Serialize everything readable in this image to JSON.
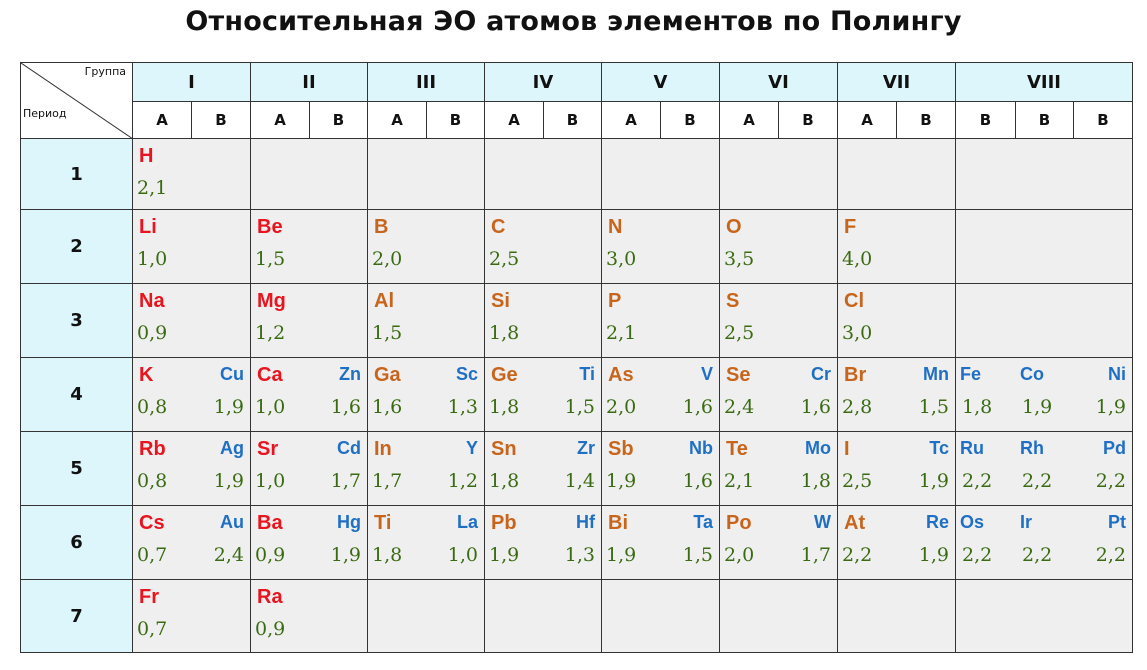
{
  "title": "Относительная ЭО атомов элементов по Полингу",
  "corner": {
    "group_label": "Группа",
    "period_label": "Период"
  },
  "groups": [
    "I",
    "II",
    "III",
    "IV",
    "V",
    "VI",
    "VII",
    "VIII"
  ],
  "subgroups": [
    "A",
    "B",
    "A",
    "B",
    "A",
    "B",
    "A",
    "B",
    "A",
    "B",
    "A",
    "B",
    "A",
    "B",
    "B",
    "B",
    "B"
  ],
  "periods": [
    "1",
    "2",
    "3",
    "4",
    "5",
    "6",
    "7"
  ],
  "colors": {
    "s_block": "#e8141e",
    "p_block": "#c8651c",
    "d_block": "#1f6fc4",
    "value": "#3a6b12",
    "header_bg": "#dcf6fb",
    "cell_bg": "#efefef"
  },
  "rows": [
    {
      "cells": [
        {
          "a": {
            "sym": "H",
            "en": "2,1",
            "c": "red"
          }
        },
        {},
        {},
        {},
        {},
        {},
        {},
        {}
      ]
    },
    {
      "cells": [
        {
          "a": {
            "sym": "Li",
            "en": "1,0",
            "c": "red"
          }
        },
        {
          "a": {
            "sym": "Be",
            "en": "1,5",
            "c": "red"
          }
        },
        {
          "a": {
            "sym": "B",
            "en": "2,0",
            "c": "orange"
          }
        },
        {
          "a": {
            "sym": "C",
            "en": "2,5",
            "c": "orange"
          }
        },
        {
          "a": {
            "sym": "N",
            "en": "3,0",
            "c": "orange"
          }
        },
        {
          "a": {
            "sym": "O",
            "en": "3,5",
            "c": "orange"
          }
        },
        {
          "a": {
            "sym": "F",
            "en": "4,0",
            "c": "orange"
          }
        },
        {}
      ]
    },
    {
      "cells": [
        {
          "a": {
            "sym": "Na",
            "en": "0,9",
            "c": "red"
          }
        },
        {
          "a": {
            "sym": "Mg",
            "en": "1,2",
            "c": "red"
          }
        },
        {
          "a": {
            "sym": "Al",
            "en": "1,5",
            "c": "orange"
          }
        },
        {
          "a": {
            "sym": "Si",
            "en": "1,8",
            "c": "orange"
          }
        },
        {
          "a": {
            "sym": "P",
            "en": "2,1",
            "c": "orange"
          }
        },
        {
          "a": {
            "sym": "S",
            "en": "2,5",
            "c": "orange"
          }
        },
        {
          "a": {
            "sym": "Cl",
            "en": "3,0",
            "c": "orange"
          }
        },
        {}
      ]
    },
    {
      "cells": [
        {
          "a": {
            "sym": "K",
            "en": "0,8",
            "c": "red"
          },
          "b": {
            "sym": "Cu",
            "en": "1,9"
          }
        },
        {
          "a": {
            "sym": "Ca",
            "en": "1,0",
            "c": "red"
          },
          "b": {
            "sym": "Zn",
            "en": "1,6"
          }
        },
        {
          "a": {
            "sym": "Ga",
            "en": "1,6",
            "c": "orange"
          },
          "b": {
            "sym": "Sc",
            "en": "1,3"
          }
        },
        {
          "a": {
            "sym": "Ge",
            "en": "1,8",
            "c": "orange"
          },
          "b": {
            "sym": "Ti",
            "en": "1,5"
          }
        },
        {
          "a": {
            "sym": "As",
            "en": "2,0",
            "c": "orange"
          },
          "b": {
            "sym": "V",
            "en": "1,6"
          }
        },
        {
          "a": {
            "sym": "Se",
            "en": "2,4",
            "c": "orange"
          },
          "b": {
            "sym": "Cr",
            "en": "1,6"
          }
        },
        {
          "a": {
            "sym": "Br",
            "en": "2,8",
            "c": "orange"
          },
          "b": {
            "sym": "Mn",
            "en": "1,5"
          }
        },
        {
          "viii": [
            {
              "sym": "Fe",
              "en": "1,8"
            },
            {
              "sym": "Co",
              "en": "1,9"
            },
            {
              "sym": "Ni",
              "en": "1,9"
            }
          ]
        }
      ]
    },
    {
      "cells": [
        {
          "a": {
            "sym": "Rb",
            "en": "0,8",
            "c": "red"
          },
          "b": {
            "sym": "Ag",
            "en": "1,9"
          }
        },
        {
          "a": {
            "sym": "Sr",
            "en": "1,0",
            "c": "red"
          },
          "b": {
            "sym": "Cd",
            "en": "1,7"
          }
        },
        {
          "a": {
            "sym": "In",
            "en": "1,7",
            "c": "orange"
          },
          "b": {
            "sym": "Y",
            "en": "1,2"
          }
        },
        {
          "a": {
            "sym": "Sn",
            "en": "1,8",
            "c": "orange"
          },
          "b": {
            "sym": "Zr",
            "en": "1,4"
          }
        },
        {
          "a": {
            "sym": "Sb",
            "en": "1,9",
            "c": "orange"
          },
          "b": {
            "sym": "Nb",
            "en": "1,6"
          }
        },
        {
          "a": {
            "sym": "Te",
            "en": "2,1",
            "c": "orange"
          },
          "b": {
            "sym": "Mo",
            "en": "1,8"
          }
        },
        {
          "a": {
            "sym": "I",
            "en": "2,5",
            "c": "orange"
          },
          "b": {
            "sym": "Tc",
            "en": "1,9"
          }
        },
        {
          "viii": [
            {
              "sym": "Ru",
              "en": "2,2"
            },
            {
              "sym": "Rh",
              "en": "2,2"
            },
            {
              "sym": "Pd",
              "en": "2,2"
            }
          ]
        }
      ]
    },
    {
      "cells": [
        {
          "a": {
            "sym": "Cs",
            "en": "0,7",
            "c": "red"
          },
          "b": {
            "sym": "Au",
            "en": "2,4"
          }
        },
        {
          "a": {
            "sym": "Ba",
            "en": "0,9",
            "c": "red"
          },
          "b": {
            "sym": "Hg",
            "en": "1,9"
          }
        },
        {
          "a": {
            "sym": "Ti",
            "en": "1,8",
            "c": "orange"
          },
          "b": {
            "sym": "La",
            "en": "1,0"
          }
        },
        {
          "a": {
            "sym": "Pb",
            "en": "1,9",
            "c": "orange"
          },
          "b": {
            "sym": "Hf",
            "en": "1,3"
          }
        },
        {
          "a": {
            "sym": "Bi",
            "en": "1,9",
            "c": "orange"
          },
          "b": {
            "sym": "Ta",
            "en": "1,5"
          }
        },
        {
          "a": {
            "sym": "Po",
            "en": "2,0",
            "c": "orange"
          },
          "b": {
            "sym": "W",
            "en": "1,7"
          }
        },
        {
          "a": {
            "sym": "At",
            "en": "2,2",
            "c": "orange"
          },
          "b": {
            "sym": "Re",
            "en": "1,9"
          }
        },
        {
          "viii": [
            {
              "sym": "Os",
              "en": "2,2"
            },
            {
              "sym": "Ir",
              "en": "2,2"
            },
            {
              "sym": "Pt",
              "en": "2,2"
            }
          ]
        }
      ]
    },
    {
      "cells": [
        {
          "a": {
            "sym": "Fr",
            "en": "0,7",
            "c": "red"
          }
        },
        {
          "a": {
            "sym": "Ra",
            "en": "0,9",
            "c": "red"
          }
        },
        {},
        {},
        {},
        {},
        {},
        {}
      ]
    }
  ]
}
